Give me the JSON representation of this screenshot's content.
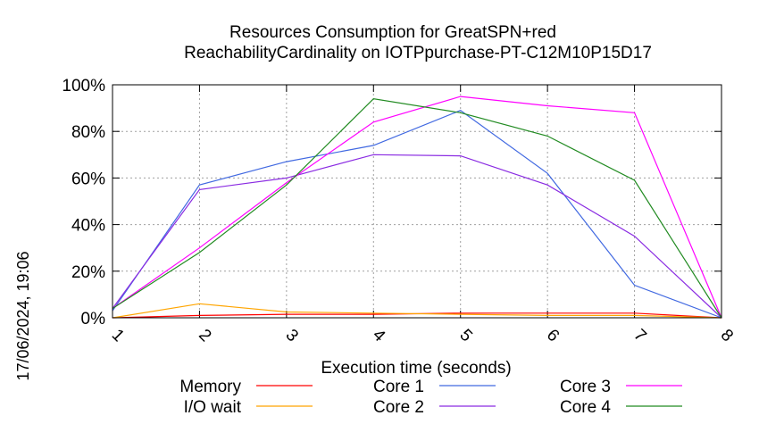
{
  "chart_data": {
    "type": "line",
    "title": "Resources Consumption for GreatSPN+red",
    "subtitle": "ReachabilityCardinality on IOTPpurchase-PT-C12M10P15D17",
    "xlabel": "Execution time (seconds)",
    "ylabel": "",
    "side_label": "17/06/2024, 19:06",
    "x": [
      1,
      2,
      3,
      4,
      5,
      6,
      7,
      8
    ],
    "xlim": [
      1,
      8
    ],
    "ylim": [
      0,
      100
    ],
    "x_ticks": [
      "1",
      "2",
      "3",
      "4",
      "5",
      "6",
      "7",
      "8"
    ],
    "y_ticks": [
      "0%",
      "20%",
      "40%",
      "60%",
      "80%",
      "100%"
    ],
    "y_tick_values": [
      0,
      20,
      40,
      60,
      80,
      100
    ],
    "grid": true,
    "legend_position": "bottom",
    "series": [
      {
        "name": "Memory",
        "color": "#ff0000",
        "values": [
          0,
          1,
          1.5,
          1.5,
          2,
          2,
          2,
          0
        ]
      },
      {
        "name": "I/O wait",
        "color": "#ffa500",
        "values": [
          0,
          6,
          2.5,
          2,
          1.5,
          1,
          1,
          0
        ]
      },
      {
        "name": "Core 1",
        "color": "#4169e1",
        "values": [
          3,
          57,
          67,
          74,
          89,
          62,
          14,
          0
        ]
      },
      {
        "name": "Core 2",
        "color": "#8a2be2",
        "values": [
          4,
          55,
          60,
          70,
          69.5,
          57,
          35,
          0
        ]
      },
      {
        "name": "Core 3",
        "color": "#ff00ff",
        "values": [
          4,
          30,
          58,
          84,
          95,
          91,
          88,
          0
        ]
      },
      {
        "name": "Core 4",
        "color": "#228b22",
        "values": [
          4,
          28,
          57,
          94,
          88,
          78,
          59,
          0
        ]
      }
    ]
  }
}
